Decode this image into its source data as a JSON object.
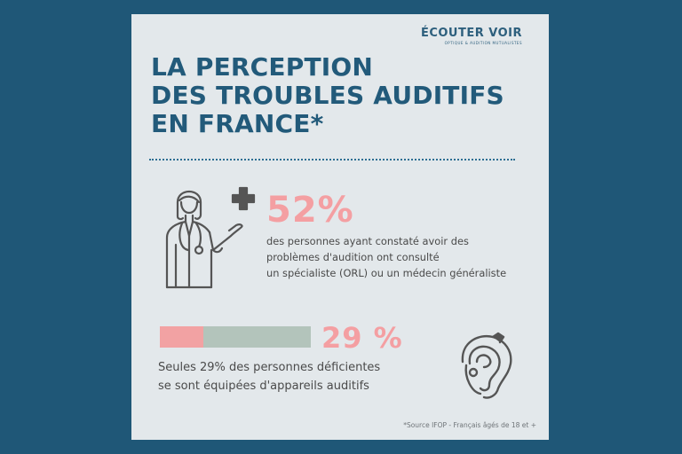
{
  "logo": {
    "main": "ÉCOUTER VOIR",
    "sub": "OPTIQUE & AUDITION MUTUALISTES"
  },
  "title": {
    "line1": "LA PERCEPTION",
    "line2": "DES TROUBLES AUDITIFS",
    "line3": "EN FRANCE*"
  },
  "stat1": {
    "value": "52%",
    "lines": [
      "des personnes ayant constaté avoir des",
      "problèmes d'audition ont consulté",
      "un spécialiste (ORL) ou un médecin généraliste"
    ],
    "icon": "doctor-icon"
  },
  "stat2": {
    "value": "29 %",
    "fraction": 0.29,
    "lines": [
      "Seules 29% des personnes déficientes",
      "se sont équipées d'appareils auditifs"
    ],
    "icon": "hearing-aid-icon",
    "fill_color": "#f2a2a3",
    "track_color": "#b3c4bb"
  },
  "source": "*Source IFOP - Français âgés de 18 et +",
  "colors": {
    "background": "#1f5777",
    "card": "#e3e8eb",
    "title": "#225a7a",
    "accent": "#f49fa2"
  }
}
